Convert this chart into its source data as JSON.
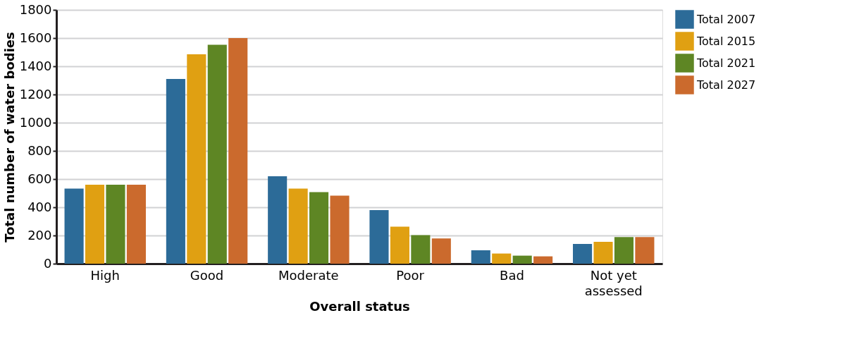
{
  "chart_data": {
    "type": "bar",
    "xlabel": "Overall status",
    "ylabel": "Total number of water bodies",
    "categories": [
      "High",
      "Good",
      "Moderate",
      "Poor",
      "Bad",
      "Not yet assessed"
    ],
    "series": [
      {
        "name": "Total 2007",
        "color": "#2c6b98",
        "values": [
          532,
          1310,
          620,
          380,
          95,
          140
        ]
      },
      {
        "name": "Total 2015",
        "color": "#e0a012",
        "values": [
          560,
          1485,
          532,
          262,
          72,
          155
        ]
      },
      {
        "name": "Total 2021",
        "color": "#5e8624",
        "values": [
          560,
          1553,
          507,
          203,
          57,
          189
        ]
      },
      {
        "name": "Total 2027",
        "color": "#cb6a2d",
        "values": [
          560,
          1600,
          483,
          179,
          52,
          189
        ]
      }
    ],
    "ylim": [
      0,
      1800
    ],
    "yticks": [
      0,
      200,
      400,
      600,
      800,
      1000,
      1200,
      1400,
      1600,
      1800
    ],
    "grid": "y",
    "legend": "right"
  }
}
